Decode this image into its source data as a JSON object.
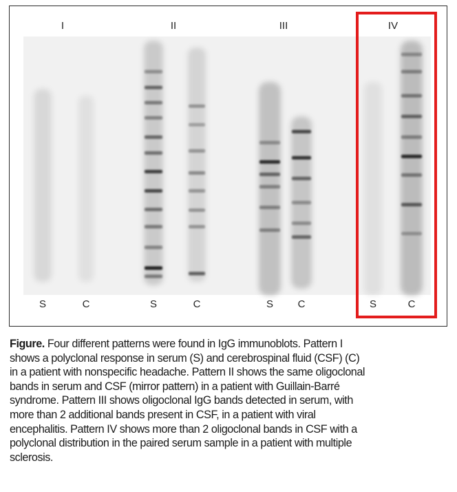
{
  "figure": {
    "patterns": [
      {
        "label": "I",
        "lanes": [
          "S",
          "C"
        ]
      },
      {
        "label": "II",
        "lanes": [
          "S",
          "C"
        ]
      },
      {
        "label": "III",
        "lanes": [
          "S",
          "C"
        ]
      },
      {
        "label": "IV",
        "lanes": [
          "S",
          "C"
        ]
      }
    ],
    "highlight_color": "#e31c1c",
    "highlighted_pattern": "IV"
  },
  "caption": {
    "lead": "Figure.",
    "lines": [
      " Four different patterns were found in IgG immunoblots. Pattern I",
      "shows a polyclonal response in serum (S) and cerebrospinal fluid (CSF) (C)",
      "in a patient with nonspecific headache. Pattern II shows the same oligoclonal",
      "bands in serum and CSF (mirror pattern) in a patient with Guillain-Barré",
      "syndrome. Pattern III shows oligoclonal IgG bands detected in serum, with",
      "more than 2 additional bands present in CSF, in a patient with viral",
      "encephalitis. Pattern IV shows more than 2 oligoclonal bands in CSF with a",
      "polyclonal distribution in the paired serum sample in a patient with multiple",
      "sclerosis."
    ]
  }
}
